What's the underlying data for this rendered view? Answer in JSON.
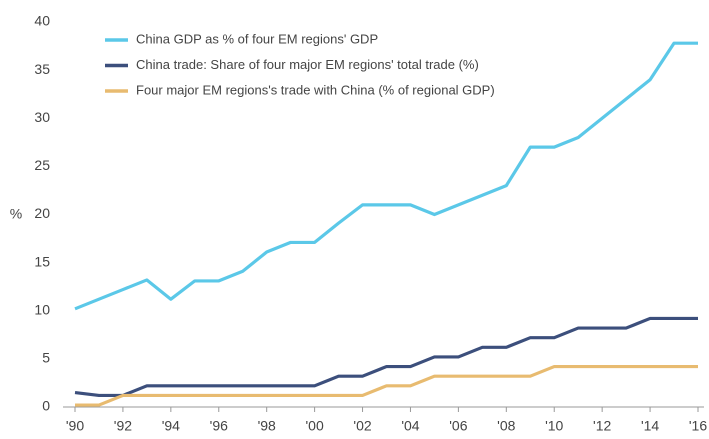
{
  "chart_data": {
    "type": "line",
    "categories": [
      "'90",
      null,
      "'92",
      null,
      "'94",
      null,
      "'96",
      null,
      "'98",
      null,
      "'00",
      null,
      "'02",
      null,
      "'04",
      null,
      "'06",
      null,
      "'08",
      null,
      "'10",
      null,
      "'12",
      null,
      "'14",
      null,
      "'16"
    ],
    "y_label": "%",
    "ylim": [
      0,
      40
    ],
    "yticks": [
      0,
      5,
      10,
      15,
      20,
      25,
      30,
      35,
      40
    ],
    "grid": false,
    "legend": "top-left",
    "series": [
      {
        "name": "China GDP as % of four EM regions' GDP",
        "color": "#5bc8e8",
        "values": [
          10.2,
          11.2,
          12.2,
          13.2,
          11.2,
          13.1,
          13.1,
          14.1,
          16.1,
          17.1,
          17.1,
          19.1,
          21,
          21,
          21,
          20,
          21,
          22,
          23,
          27,
          27,
          28,
          30,
          32,
          34,
          37.8,
          37.8
        ]
      },
      {
        "name": "China trade: Share of four major EM regions' total trade (%)",
        "color": "#3c4f7c",
        "values": [
          1.5,
          1.2,
          1.2,
          2.2,
          2.2,
          2.2,
          2.2,
          2.2,
          2.2,
          2.2,
          2.2,
          3.2,
          3.2,
          4.2,
          4.2,
          5.2,
          5.2,
          6.2,
          6.2,
          7.2,
          7.2,
          8.2,
          8.2,
          8.2,
          9.2,
          9.2,
          9.2
        ]
      },
      {
        "name": "Four major EM regions's trade with China (% of regional GDP)",
        "color": "#e8bb70",
        "values": [
          0.2,
          0.2,
          1.2,
          1.2,
          1.2,
          1.2,
          1.2,
          1.2,
          1.2,
          1.2,
          1.2,
          1.2,
          1.2,
          2.2,
          2.2,
          3.2,
          3.2,
          3.2,
          3.2,
          3.2,
          4.2,
          4.2,
          4.2,
          4.2,
          4.2,
          4.2,
          4.2
        ]
      }
    ]
  }
}
